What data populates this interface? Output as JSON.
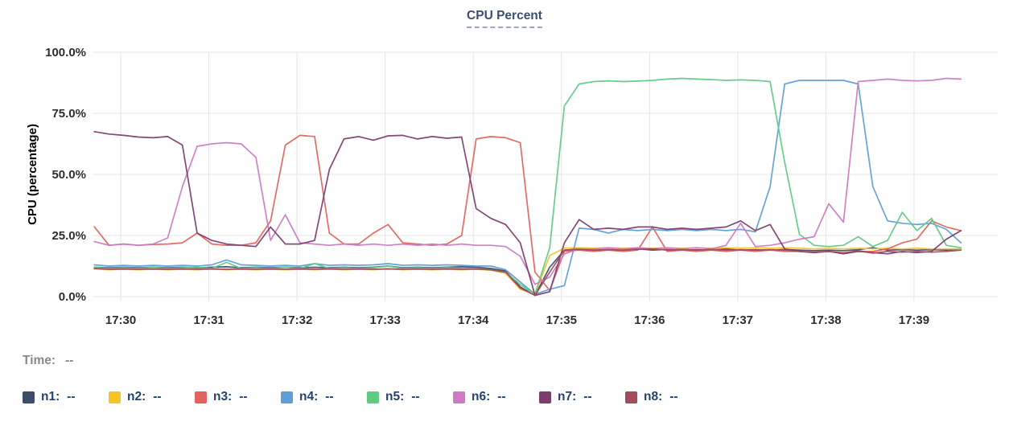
{
  "title": {
    "text": "CPU Percent"
  },
  "legend": {
    "time_label": "Time:",
    "time_value": "--",
    "items": [
      {
        "name": "n1",
        "label": "n1:",
        "value": "--",
        "color": "#3e4c66"
      },
      {
        "name": "n2",
        "label": "n2:",
        "value": "--",
        "color": "#f6c426"
      },
      {
        "name": "n3",
        "label": "n3:",
        "value": "--",
        "color": "#e3635c"
      },
      {
        "name": "n4",
        "label": "n4:",
        "value": "--",
        "color": "#5f9ed7"
      },
      {
        "name": "n5",
        "label": "n5:",
        "value": "--",
        "color": "#5fcb83"
      },
      {
        "name": "n6",
        "label": "n6:",
        "value": "--",
        "color": "#ce7ac5"
      },
      {
        "name": "n7",
        "label": "n7:",
        "value": "--",
        "color": "#7c3e6f"
      },
      {
        "name": "n8",
        "label": "n8:",
        "value": "--",
        "color": "#a44a5f"
      }
    ]
  },
  "chart_data": {
    "type": "line",
    "title": "CPU Percent",
    "xlabel": "",
    "ylabel": "CPU (percentage)",
    "ylim": [
      0,
      100
    ],
    "xlim": [
      -0.32,
      9.95
    ],
    "grid": true,
    "legend_position": "bottom",
    "y_ticks": [
      0,
      25,
      50,
      75,
      100
    ],
    "y_tick_labels": [
      "0.0%",
      "25.0%",
      "50.0%",
      "75.0%",
      "100.0%"
    ],
    "x_ticks": [
      0,
      1,
      2,
      3,
      4,
      5,
      6,
      7,
      8,
      9
    ],
    "x_tick_labels": [
      "17:30",
      "17:31",
      "17:32",
      "17:33",
      "17:34",
      "17:35",
      "17:36",
      "17:37",
      "17:38",
      "17:39"
    ],
    "x_unit": "minutes after 17:30, samples every 10s",
    "x": [
      -0.3,
      -0.133,
      0.033,
      0.2,
      0.367,
      0.533,
      0.7,
      0.867,
      1.033,
      1.2,
      1.367,
      1.533,
      1.7,
      1.867,
      2.033,
      2.2,
      2.367,
      2.533,
      2.7,
      2.867,
      3.033,
      3.2,
      3.367,
      3.533,
      3.7,
      3.867,
      4.033,
      4.2,
      4.367,
      4.533,
      4.7,
      4.867,
      5.033,
      5.2,
      5.367,
      5.533,
      5.7,
      5.867,
      6.033,
      6.2,
      6.367,
      6.533,
      6.7,
      6.867,
      7.033,
      7.2,
      7.367,
      7.533,
      7.7,
      7.867,
      8.033,
      8.2,
      8.367,
      8.533,
      8.7,
      8.867,
      9.033,
      9.2,
      9.367,
      9.533
    ],
    "series": [
      {
        "name": "n1",
        "color": "#3e4c66",
        "values": [
          12,
          11.8,
          12,
          11.8,
          12,
          11.8,
          12,
          11.8,
          12,
          12.2,
          11.8,
          12,
          11.8,
          12,
          11.8,
          12,
          11.8,
          12,
          11.8,
          12,
          12.5,
          11.8,
          12,
          11.8,
          12,
          12.2,
          12,
          11.5,
          10.5,
          4,
          0.5,
          12,
          19,
          19.5,
          19,
          19.3,
          19,
          19.5,
          19,
          19.3,
          19,
          19.2,
          19,
          19.5,
          19,
          19.2,
          19,
          19.3,
          19,
          18.8,
          19,
          18.8,
          19.2,
          20,
          19,
          19.2,
          19,
          19.2,
          19,
          19.5
        ]
      },
      {
        "name": "n2",
        "color": "#f6c426",
        "values": [
          11.3,
          11,
          11.2,
          11,
          11.2,
          11,
          11.2,
          11,
          11.3,
          11,
          11.2,
          11,
          11.2,
          11,
          11.2,
          11,
          11.3,
          11,
          11.2,
          11,
          11.5,
          11,
          11.2,
          11,
          11.2,
          11,
          11.2,
          10.8,
          9.5,
          3,
          1,
          16.8,
          19.8,
          20,
          19.8,
          20,
          19.8,
          20,
          19.8,
          20,
          19.8,
          20,
          19.8,
          20,
          19.8,
          20,
          19.8,
          20,
          19.8,
          19.5,
          19.8,
          19.5,
          19.8,
          19.5,
          19.8,
          19.5,
          19.8,
          19.5,
          19.5,
          19.5
        ]
      },
      {
        "name": "n3",
        "color": "#e3635c",
        "values": [
          28.6,
          21,
          21.5,
          21,
          21.3,
          21.5,
          22,
          26,
          21.5,
          21,
          21,
          22,
          31,
          62,
          66,
          65.5,
          26,
          21.5,
          21.5,
          26,
          29.5,
          22,
          21.5,
          21,
          21.5,
          25,
          64.5,
          65.5,
          65,
          63,
          10,
          2.5,
          18.5,
          19,
          18.5,
          19,
          18.5,
          19,
          28.5,
          18.5,
          19,
          18.5,
          19,
          18.5,
          19,
          18.5,
          19,
          18.5,
          18.5,
          18,
          18.5,
          18,
          18.5,
          18.5,
          19.5,
          22,
          23.5,
          31,
          28.5,
          27
        ]
      },
      {
        "name": "n4",
        "color": "#5f9ed7",
        "values": [
          13,
          12.5,
          12.8,
          12.5,
          12.8,
          12.5,
          12.8,
          12.5,
          13,
          15,
          13,
          12.8,
          12.5,
          12.8,
          12.5,
          13.5,
          12.8,
          13,
          12.8,
          13,
          13.5,
          12.8,
          13,
          12.8,
          13,
          12.8,
          12.5,
          12.5,
          11,
          6,
          1,
          3,
          4.5,
          28,
          27.5,
          26,
          27.5,
          27,
          27.5,
          27,
          27.5,
          27,
          27.5,
          27,
          27.5,
          26.5,
          45,
          87,
          88.5,
          88.5,
          88.5,
          88.5,
          87,
          45,
          31,
          30,
          29.5,
          30,
          27.5,
          22
        ]
      },
      {
        "name": "n5",
        "color": "#5fcb83",
        "values": [
          12,
          11.5,
          11.8,
          11.5,
          12,
          11.5,
          11.8,
          12,
          11.5,
          14,
          11.5,
          11.8,
          11.5,
          12,
          11.5,
          13.5,
          11.5,
          11.8,
          11.5,
          11.8,
          12.5,
          11.5,
          11.8,
          11.5,
          11.8,
          11.5,
          11.5,
          11,
          10,
          5,
          1,
          20,
          78,
          87,
          88,
          88.3,
          88,
          88.2,
          88.5,
          89,
          89.3,
          89,
          88.8,
          88.5,
          88.7,
          88.5,
          88,
          55,
          25.5,
          21,
          20.5,
          21,
          24.5,
          20.5,
          23,
          34.5,
          27,
          32,
          21,
          20
        ]
      },
      {
        "name": "n6",
        "color": "#ce7ac5",
        "values": [
          22.5,
          21,
          21.5,
          21,
          21.5,
          24,
          45,
          61.5,
          62.5,
          63,
          62.5,
          57,
          23,
          33.5,
          22,
          21.5,
          21,
          21.5,
          21,
          21.5,
          21,
          21.5,
          21,
          21.5,
          21,
          21.5,
          21,
          21,
          20.5,
          16.5,
          5,
          8,
          17.5,
          19.5,
          19.5,
          20,
          19.5,
          20,
          19.5,
          20,
          19.5,
          20,
          19.5,
          21,
          30,
          20.5,
          21,
          22,
          23.5,
          24.5,
          38,
          30.5,
          88,
          88.5,
          89,
          88.5,
          88.3,
          88.5,
          89.3,
          89
        ]
      },
      {
        "name": "n7",
        "color": "#7c3e6f",
        "values": [
          67.5,
          66.5,
          66,
          65.3,
          65,
          65.5,
          62,
          26,
          23,
          21.5,
          21,
          20.5,
          28.5,
          21.5,
          21.5,
          23,
          52,
          64.5,
          65.5,
          64,
          65.8,
          66,
          64.5,
          65.5,
          64.8,
          65.3,
          36,
          32,
          29.5,
          22,
          0.5,
          2,
          22,
          31.5,
          27.5,
          28,
          27.5,
          28.5,
          28.5,
          27.5,
          28,
          27.5,
          28,
          28.5,
          31,
          27,
          29.5,
          19.5,
          18.5,
          18,
          18.5,
          17.5,
          18.5,
          18,
          17.5,
          18.5,
          18,
          18.5,
          23.5,
          27
        ]
      },
      {
        "name": "n8",
        "color": "#a44a5f",
        "values": [
          11.5,
          11.2,
          11.3,
          11.2,
          11.3,
          11.2,
          11.3,
          11.2,
          11.3,
          11.2,
          11.3,
          11.2,
          11.3,
          11.2,
          11.3,
          11.2,
          11.3,
          11.2,
          11.3,
          11.2,
          11.3,
          11.2,
          11.3,
          11.2,
          11.3,
          11.2,
          11.3,
          11,
          10,
          3.5,
          0.5,
          10,
          19,
          19.3,
          19,
          19.2,
          19,
          19.3,
          19.5,
          19,
          19.2,
          19,
          19.3,
          19,
          19.2,
          19,
          19.2,
          19,
          18.5,
          18.2,
          18.5,
          17.8,
          18.8,
          17.8,
          18.5,
          18.2,
          18.5,
          18.2,
          18.5,
          19
        ]
      }
    ]
  }
}
